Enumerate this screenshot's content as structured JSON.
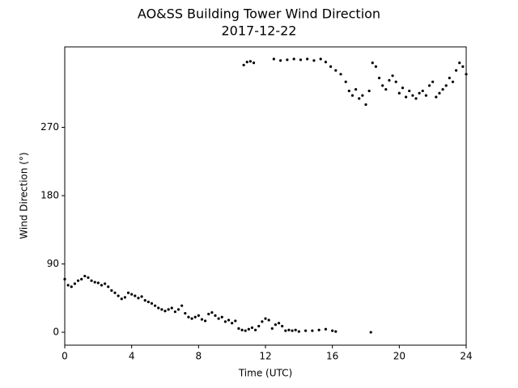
{
  "chart_data": {
    "type": "scatter",
    "title": "AO&SS Building Tower Wind Direction",
    "subtitle": "2017-12-22",
    "x_label": "Time (UTC)",
    "y_label": "Wind Direction (°)",
    "color": "#000000",
    "xlim": [
      0,
      24
    ],
    "ylim": [
      -17,
      376
    ],
    "xticks": [
      0,
      4,
      8,
      12,
      16,
      20,
      24
    ],
    "yticks": [
      0,
      90,
      180,
      270
    ],
    "x": [
      0.0,
      0.2,
      0.4,
      0.6,
      0.8,
      1.0,
      1.2,
      1.4,
      1.6,
      1.8,
      2.0,
      2.2,
      2.4,
      2.6,
      2.8,
      3.0,
      3.2,
      3.4,
      3.6,
      3.8,
      4.0,
      4.2,
      4.4,
      4.6,
      4.8,
      5.0,
      5.2,
      5.4,
      5.6,
      5.8,
      6.0,
      6.2,
      6.4,
      6.6,
      6.8,
      7.0,
      7.2,
      7.4,
      7.6,
      7.8,
      8.0,
      8.2,
      8.4,
      8.6,
      8.8,
      9.0,
      9.2,
      9.4,
      9.6,
      9.8,
      10.0,
      10.2,
      10.4,
      10.6,
      10.8,
      11.0,
      11.2,
      11.4,
      11.6,
      11.8,
      12.0,
      12.2,
      12.4,
      12.6,
      12.8,
      13.0,
      13.2,
      13.4,
      13.6,
      13.8,
      14.0,
      14.4,
      14.8,
      15.2,
      15.6,
      16.0,
      16.2,
      18.3,
      10.7,
      10.9,
      11.1,
      11.3,
      12.5,
      12.9,
      13.3,
      13.7,
      14.1,
      14.5,
      14.9,
      15.3,
      15.6,
      15.9,
      16.2,
      16.5,
      16.8,
      17.0,
      17.2,
      17.4,
      17.6,
      17.8,
      18.0,
      18.2,
      18.4,
      18.6,
      18.8,
      19.0,
      19.2,
      19.4,
      19.6,
      19.8,
      20.0,
      20.2,
      20.4,
      20.6,
      20.8,
      21.0,
      21.2,
      21.4,
      21.6,
      21.8,
      22.0,
      22.2,
      22.4,
      22.6,
      22.8,
      23.0,
      23.2,
      23.4,
      23.6,
      23.8,
      24.0
    ],
    "values": [
      70,
      62,
      60,
      64,
      68,
      70,
      74,
      72,
      68,
      66,
      65,
      62,
      64,
      60,
      55,
      52,
      48,
      44,
      46,
      52,
      50,
      48,
      45,
      47,
      42,
      40,
      38,
      35,
      32,
      30,
      28,
      30,
      32,
      27,
      30,
      35,
      25,
      20,
      18,
      20,
      22,
      17,
      15,
      24,
      26,
      22,
      18,
      20,
      14,
      16,
      12,
      15,
      5,
      3,
      2,
      4,
      6,
      3,
      8,
      14,
      18,
      16,
      5,
      10,
      12,
      8,
      2,
      3,
      2,
      3,
      1,
      2,
      2,
      3,
      4,
      2,
      1,
      0,
      352,
      356,
      357,
      355,
      360,
      358,
      359,
      360,
      359,
      360,
      358,
      360,
      356,
      350,
      345,
      340,
      330,
      318,
      312,
      320,
      308,
      312,
      300,
      318,
      355,
      350,
      335,
      325,
      320,
      332,
      338,
      330,
      315,
      322,
      310,
      318,
      312,
      308,
      315,
      318,
      312,
      325,
      330,
      310,
      315,
      320,
      325,
      335,
      330,
      345,
      355,
      350,
      340
    ]
  }
}
